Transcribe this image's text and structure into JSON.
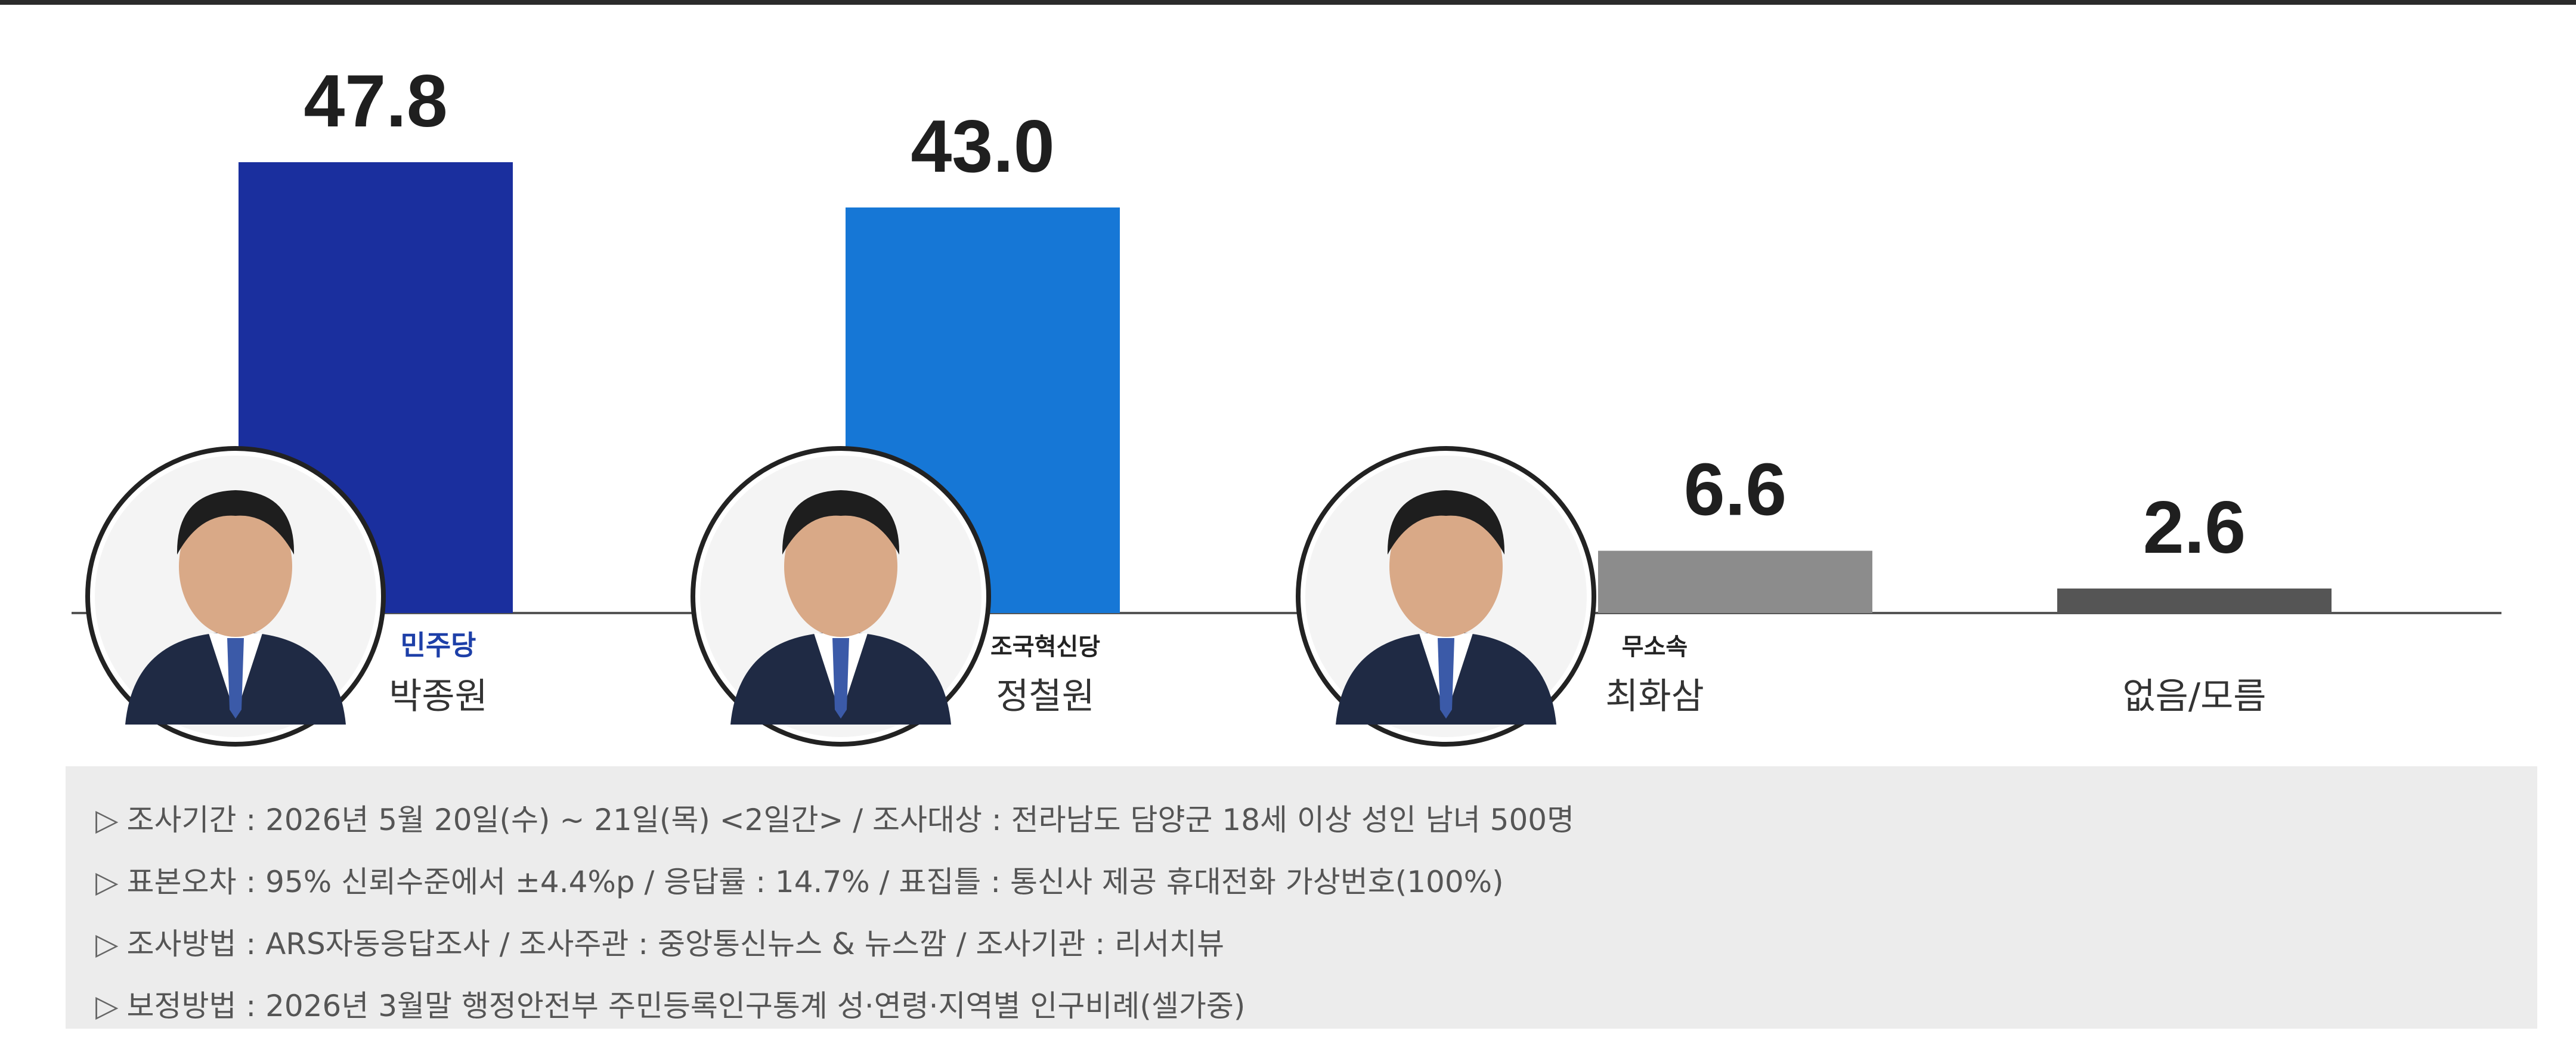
{
  "chart_data": {
    "type": "bar",
    "categories": [
      "박종원",
      "정철원",
      "최화삼",
      "없음/모름"
    ],
    "parties": [
      "민주당",
      "조국혁신당",
      "무소속",
      ""
    ],
    "values": [
      47.8,
      43.0,
      6.6,
      2.6
    ],
    "value_labels": [
      "47.8",
      "43.0",
      "6.6",
      "2.6"
    ],
    "colors": [
      "#1a2f9e",
      "#1677d6",
      "#8c8c8c",
      "#555555"
    ],
    "grid": false,
    "legend": "none"
  },
  "notes": [
    "조사기간 : 2026년 5월 20일(수) ~ 21일(목) <2일간> / 조사대상 : 전라남도 담양군 18세 이상 성인 남녀 500명",
    "표본오차 : 95% 신뢰수준에서 ±4.4%p / 응답률 : 14.7% / 표집틀 : 통신사 제공 휴대전화 가상번호(100%)",
    "조사방법 : ARS자동응답조사 / 조사주관 : 중앙통신뉴스 & 뉴스깜 / 조사기관 : 리서치뷰",
    "보정방법 : 2026년 3월말 행정안전부 주민등록인구통계 성·연령·지역별 인구비례(셀가중)"
  ],
  "note_marker": "▷"
}
